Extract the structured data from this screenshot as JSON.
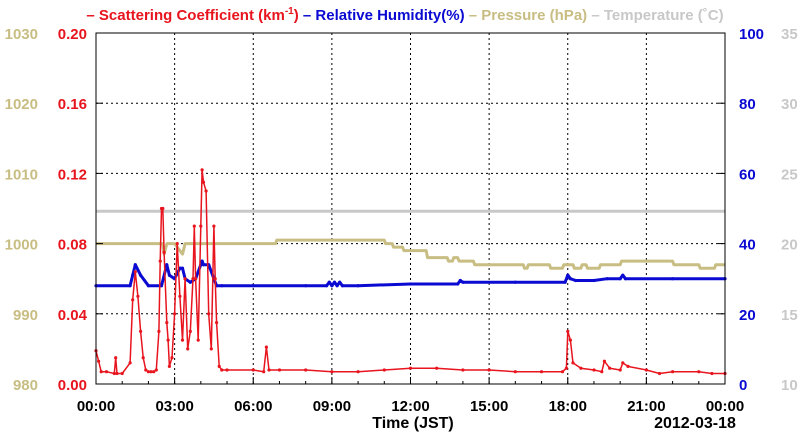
{
  "chart_data": {
    "type": "line",
    "xlabel": "Time (JST)",
    "date_label": "2012-03-18",
    "x_range": [
      0,
      24
    ],
    "x_ticks": [
      "00:00",
      "03:00",
      "06:00",
      "09:00",
      "12:00",
      "15:00",
      "18:00",
      "21:00",
      "00:00"
    ],
    "grid": true,
    "legend": {
      "placement": "top",
      "entries": [
        {
          "dash": "–",
          "label": "Scattering Coefficient (km",
          "sup": "-1",
          "close": ")",
          "color": "#e8141e"
        },
        {
          "dash": "–",
          "label": "Relative Humidity(%)",
          "color": "#0a0ad2"
        },
        {
          "dash": "–",
          "label": "Pressure (hPa)",
          "color": "#c8bd82"
        },
        {
          "dash": "–",
          "label": "Temperature (˚C)",
          "color": "#c8c8c8"
        }
      ]
    },
    "axes": {
      "pressure": {
        "ticks": [
          "980",
          "990",
          "1000",
          "1010",
          "1020",
          "1030"
        ],
        "range": [
          980,
          1030
        ],
        "color": "#c8bd82"
      },
      "scattering": {
        "ticks": [
          "0.00",
          "0.04",
          "0.08",
          "0.12",
          "0.16",
          "0.20"
        ],
        "range": [
          0,
          0.2
        ],
        "color": "#e8141e"
      },
      "humidity": {
        "ticks": [
          "0",
          "20",
          "40",
          "60",
          "80",
          "100"
        ],
        "range": [
          0,
          100
        ],
        "color": "#0a0ad2"
      },
      "temperature": {
        "ticks": [
          "10",
          "15",
          "20",
          "25",
          "30",
          "35"
        ],
        "range": [
          10,
          35
        ],
        "color": "#c8c8c8"
      }
    },
    "series": [
      {
        "name": "Scattering Coefficient (km-1)",
        "axis": "scattering",
        "color": "#e8141e",
        "x": [
          0,
          0.1,
          0.2,
          0.4,
          0.7,
          0.75,
          0.8,
          1.0,
          1.3,
          1.4,
          1.5,
          1.6,
          1.7,
          1.8,
          1.9,
          2.0,
          2.1,
          2.2,
          2.3,
          2.4,
          2.45,
          2.5,
          2.55,
          2.6,
          2.7,
          2.75,
          2.8,
          2.9,
          3.0,
          3.1,
          3.2,
          3.3,
          3.4,
          3.5,
          3.6,
          3.7,
          3.75,
          3.8,
          3.9,
          4.0,
          4.05,
          4.1,
          4.2,
          4.3,
          4.4,
          4.5,
          4.55,
          4.6,
          4.7,
          4.8,
          5.0,
          6.0,
          6.4,
          6.5,
          6.6,
          7.0,
          8.0,
          9.0,
          10.0,
          11.0,
          12.0,
          13.0,
          14.0,
          15.0,
          16.0,
          17.0,
          17.8,
          17.95,
          18.0,
          18.1,
          18.2,
          18.5,
          19.0,
          19.3,
          19.4,
          19.6,
          20.0,
          20.1,
          20.3,
          21.0,
          21.5,
          22.0,
          23.0,
          23.5,
          24.0
        ],
        "y": [
          0.019,
          0.013,
          0.007,
          0.007,
          0.006,
          0.015,
          0.006,
          0.006,
          0.012,
          0.048,
          0.064,
          0.05,
          0.03,
          0.015,
          0.008,
          0.007,
          0.007,
          0.007,
          0.008,
          0.03,
          0.07,
          0.1,
          0.1,
          0.075,
          0.035,
          0.025,
          0.01,
          0.015,
          0.04,
          0.08,
          0.05,
          0.025,
          0.06,
          0.02,
          0.03,
          0.06,
          0.09,
          0.06,
          0.025,
          0.09,
          0.122,
          0.115,
          0.11,
          0.04,
          0.02,
          0.09,
          0.06,
          0.035,
          0.01,
          0.008,
          0.008,
          0.008,
          0.007,
          0.021,
          0.008,
          0.008,
          0.008,
          0.007,
          0.007,
          0.008,
          0.009,
          0.009,
          0.008,
          0.008,
          0.007,
          0.007,
          0.007,
          0.009,
          0.03,
          0.025,
          0.012,
          0.009,
          0.008,
          0.007,
          0.013,
          0.009,
          0.008,
          0.012,
          0.01,
          0.008,
          0.006,
          0.007,
          0.007,
          0.006,
          0.006
        ]
      },
      {
        "name": "Relative Humidity(%)",
        "axis": "humidity",
        "color": "#0a0ad2",
        "x": [
          0,
          1.3,
          1.4,
          1.5,
          1.7,
          2.0,
          2.5,
          2.7,
          2.8,
          3.0,
          3.2,
          3.3,
          3.4,
          3.6,
          3.8,
          4.0,
          4.05,
          4.1,
          4.3,
          4.5,
          4.6,
          4.8,
          6.0,
          8.0,
          8.8,
          8.9,
          9.0,
          9.1,
          9.2,
          9.3,
          9.4,
          10.0,
          12.0,
          13.8,
          13.9,
          14.0,
          16.0,
          17.9,
          18.0,
          18.1,
          18.3,
          19.0,
          19.5,
          20.0,
          20.1,
          20.2,
          22.0,
          24.0
        ],
        "y": [
          28,
          28,
          31,
          34,
          31,
          28,
          28,
          34,
          31,
          30,
          33,
          33,
          30,
          29,
          30,
          34,
          35,
          34,
          34,
          30,
          28,
          28,
          28,
          28,
          28,
          29,
          28,
          29,
          28,
          29,
          28,
          28,
          28.5,
          28.5,
          29.5,
          29,
          29,
          29,
          31,
          30,
          29.5,
          29.5,
          30,
          30,
          31,
          30,
          30,
          30
        ]
      },
      {
        "name": "Pressure (hPa)",
        "axis": "pressure",
        "color": "#c8bd82",
        "x": [
          0,
          2.55,
          2.6,
          2.7,
          3.0,
          3.3,
          3.4,
          5.0,
          6.85,
          6.9,
          11.0,
          11.05,
          11.3,
          11.35,
          11.7,
          11.75,
          12.6,
          12.65,
          13.4,
          13.45,
          13.6,
          13.65,
          13.8,
          13.85,
          14.4,
          14.45,
          16.3,
          16.35,
          16.45,
          16.5,
          17.3,
          17.35,
          17.8,
          17.85,
          18.2,
          18.25,
          18.5,
          18.55,
          18.7,
          18.75,
          19.2,
          19.25,
          20.0,
          20.05,
          22.0,
          22.05,
          23.0,
          23.05,
          23.6,
          23.65,
          24.0
        ],
        "y": [
          1000,
          1000,
          998.5,
          1000,
          1000,
          998.5,
          1000,
          1000,
          1000,
          1000.5,
          1000.5,
          1000,
          1000,
          999.5,
          999.5,
          999,
          999,
          998,
          998,
          997.5,
          997.5,
          998,
          998,
          997.5,
          997.5,
          997,
          997,
          996.5,
          996.5,
          997,
          997,
          996.5,
          996.5,
          997,
          997,
          996.5,
          996.5,
          997,
          997,
          996.5,
          996.5,
          997,
          997,
          997.5,
          997.5,
          997,
          997,
          996.5,
          996.5,
          997,
          997
        ]
      },
      {
        "name": "Temperature (˚C)",
        "axis": "temperature",
        "color": "#c8c8c8",
        "x": [
          0,
          24
        ],
        "y": [
          22.3,
          22.3
        ]
      }
    ]
  }
}
